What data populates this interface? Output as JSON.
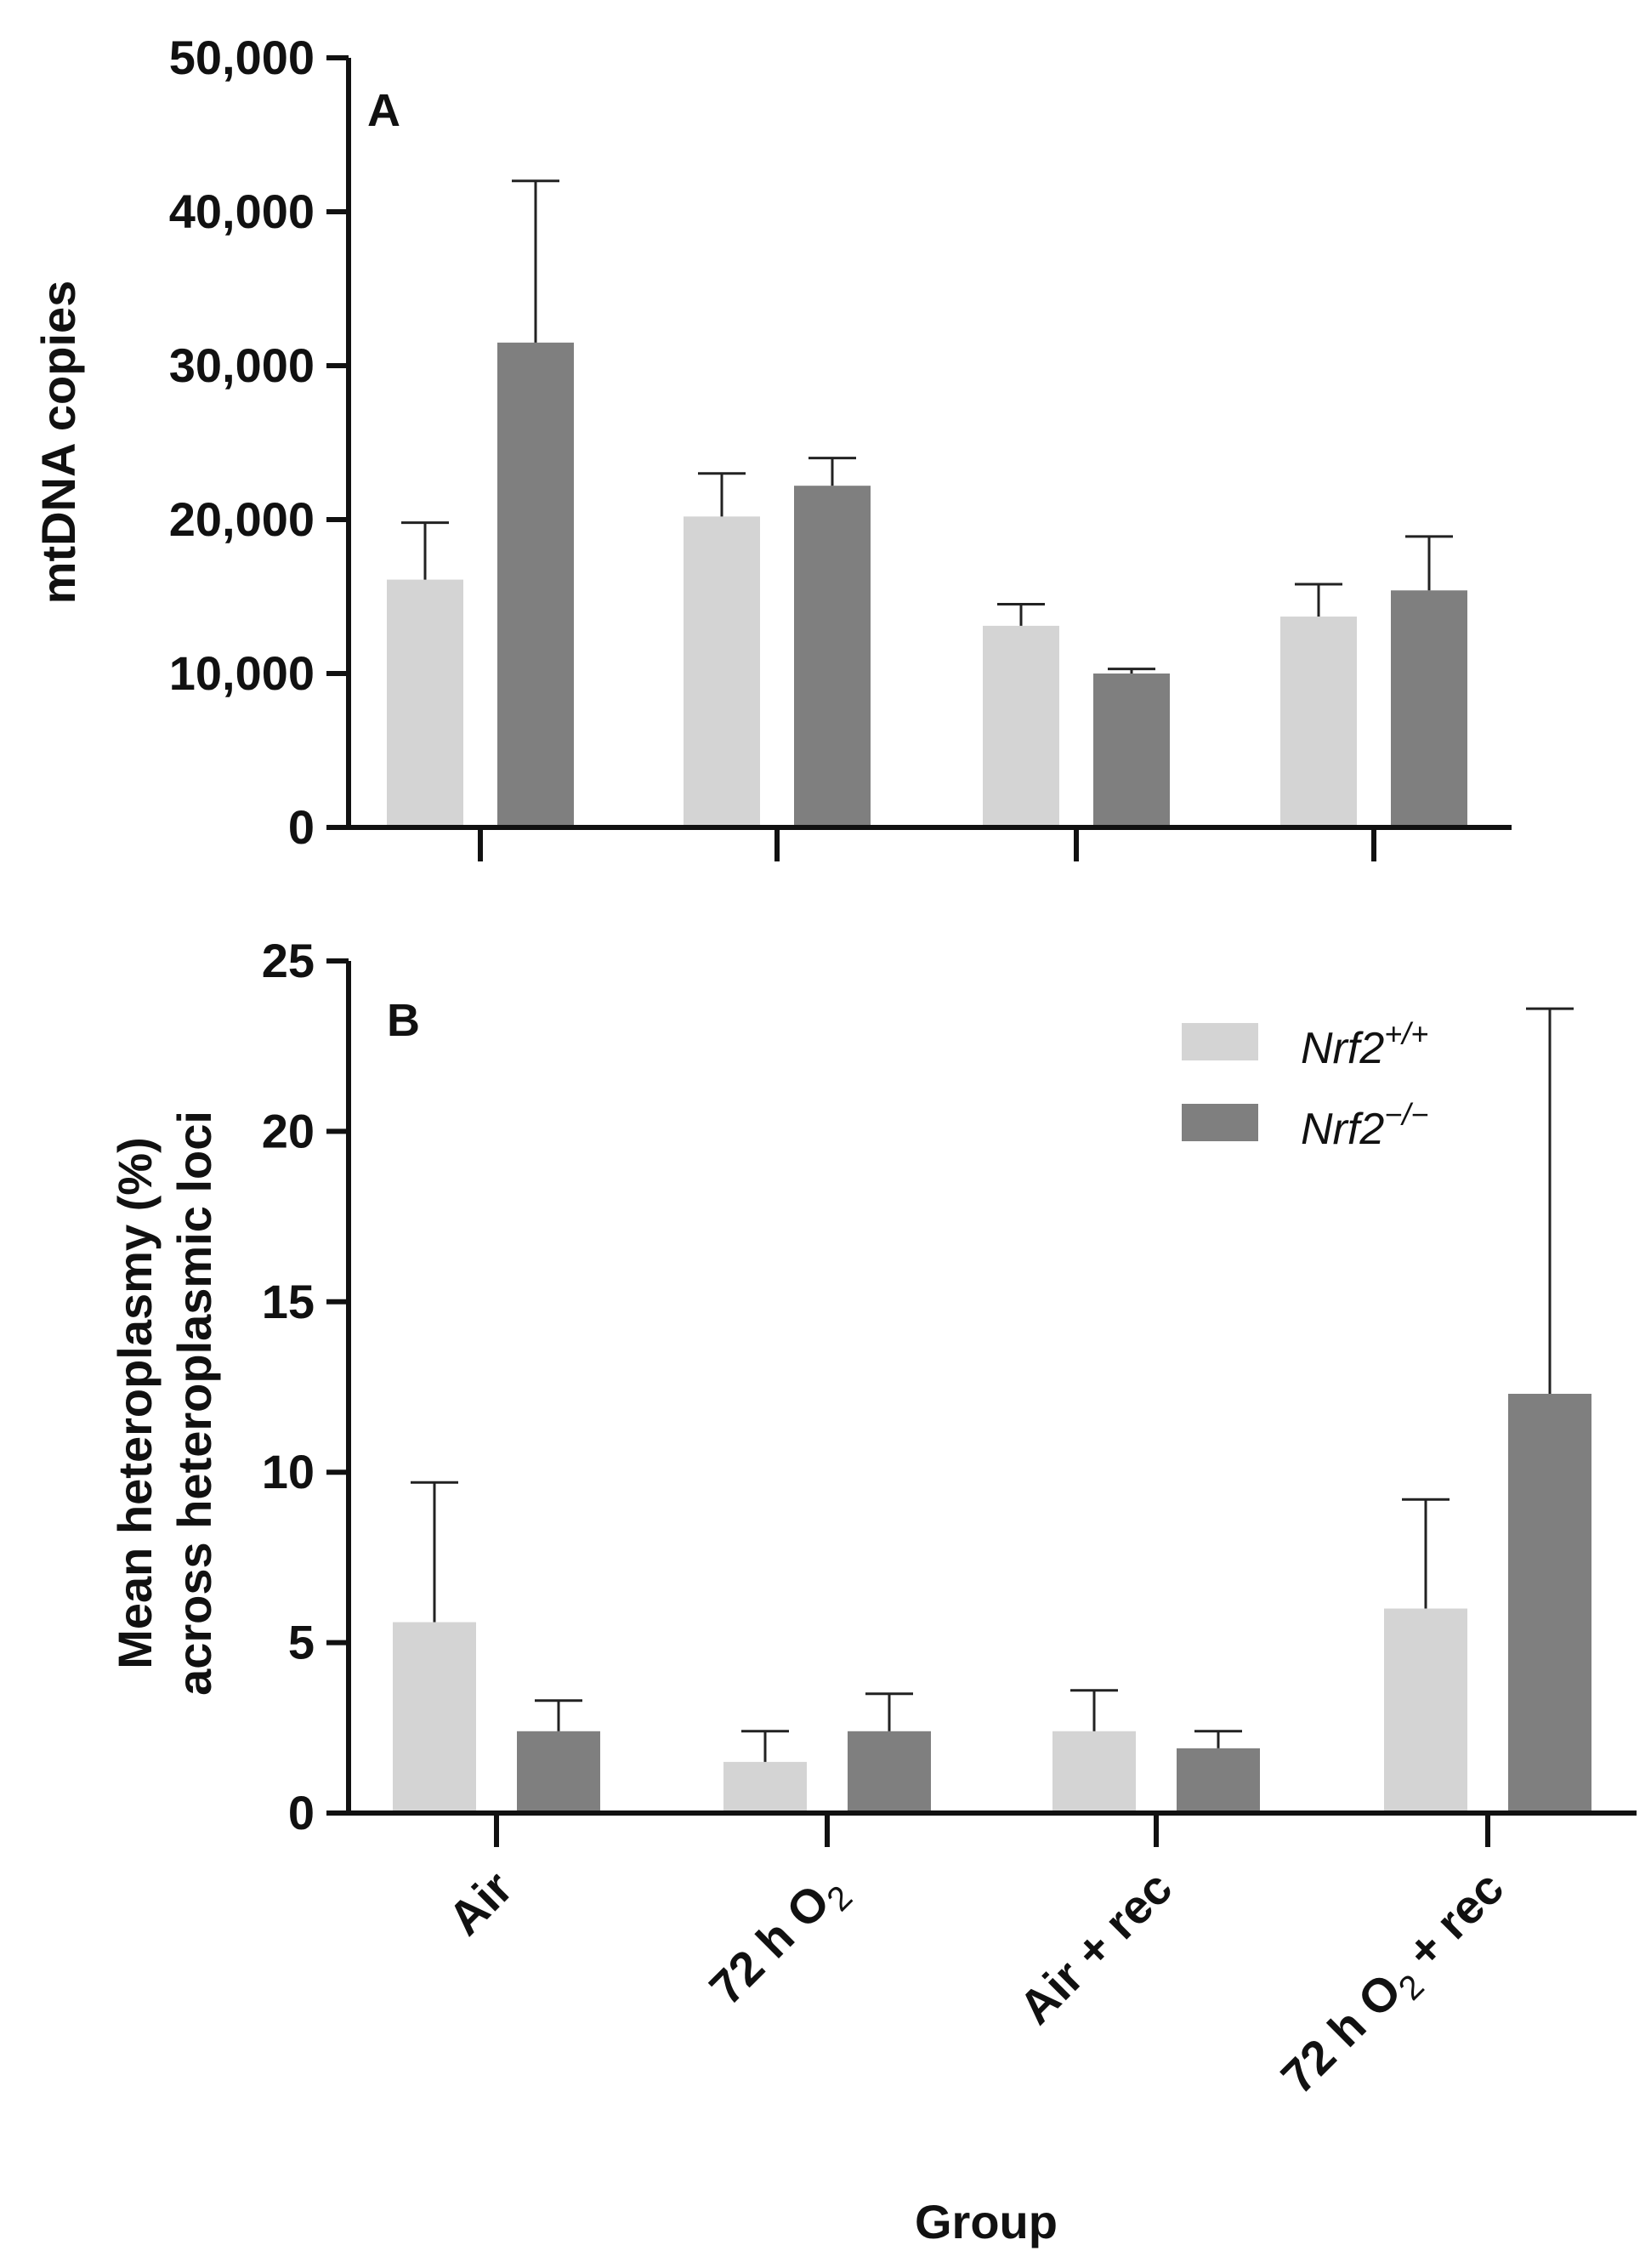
{
  "colors": {
    "wildtype": "#d4d4d4",
    "knockout": "#7f7f7f",
    "axis": "#111111",
    "error_bar": "#222222"
  },
  "legend": {
    "wildtype_base": "Nrf2",
    "wildtype_sup": "+/+",
    "knockout_base": "Nrf2",
    "knockout_sup": "−/−"
  },
  "chart_data": [
    {
      "type": "bar",
      "panel": "A",
      "title": "",
      "xlabel": "",
      "ylabel": "mtDNA copies",
      "ylim": [
        0,
        50000
      ],
      "yticks": [
        0,
        10000,
        20000,
        30000,
        40000,
        50000
      ],
      "ytick_labels": [
        "0",
        "10,000",
        "20,000",
        "30,000",
        "40,000",
        "50,000"
      ],
      "categories": [
        "Air",
        "72 h O2",
        "Air + rec",
        "72 h O2 + rec"
      ],
      "series": [
        {
          "name": "Nrf2+/+",
          "values": [
            16100,
            20200,
            13100,
            13700
          ],
          "errors": [
            3700,
            2800,
            1400,
            2100
          ]
        },
        {
          "name": "Nrf2−/−",
          "values": [
            31500,
            22200,
            10000,
            15400
          ],
          "errors": [
            10500,
            1800,
            300,
            3500
          ]
        }
      ]
    },
    {
      "type": "bar",
      "panel": "B",
      "title": "",
      "xlabel": "Group",
      "ylabel_line1": "Mean heteroplasmy (%)",
      "ylabel_line2": "across heteroplasmic loci",
      "ylim": [
        0,
        25
      ],
      "yticks": [
        0,
        5,
        10,
        15,
        20,
        25
      ],
      "ytick_labels": [
        "0",
        "5",
        "10",
        "15",
        "20",
        "25"
      ],
      "categories": [
        "Air",
        "72 h O2",
        "Air + rec",
        "72 h O2 + rec"
      ],
      "category_labels": [
        {
          "main": "Air",
          "sub": "",
          "tail": ""
        },
        {
          "main": "72 h O",
          "sub": "2",
          "tail": ""
        },
        {
          "main": "Air + rec",
          "sub": "",
          "tail": ""
        },
        {
          "main": "72 h O",
          "sub": "2",
          "tail": " + rec"
        }
      ],
      "series": [
        {
          "name": "Nrf2+/+",
          "values": [
            5.6,
            1.5,
            2.4,
            6.0
          ],
          "errors": [
            4.1,
            0.9,
            1.2,
            3.2
          ]
        },
        {
          "name": "Nrf2−/−",
          "values": [
            2.4,
            2.4,
            1.9,
            12.3
          ],
          "errors": [
            0.9,
            1.1,
            0.5,
            11.3
          ]
        }
      ]
    }
  ]
}
